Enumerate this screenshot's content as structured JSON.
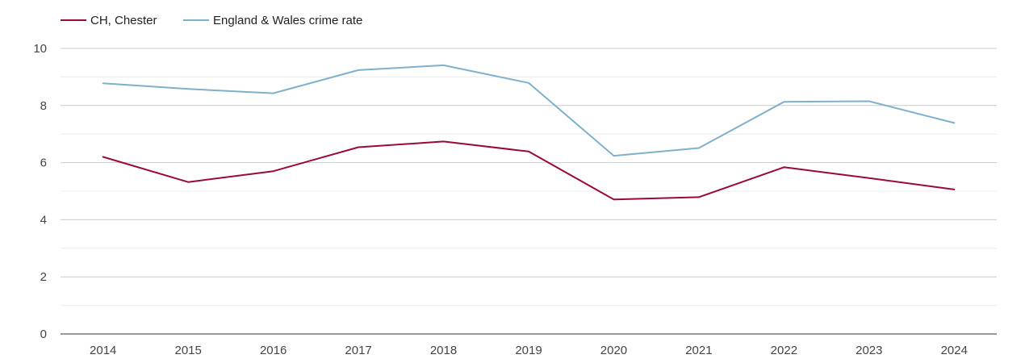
{
  "chart_data": {
    "type": "line",
    "title": "",
    "xlabel": "",
    "ylabel": "",
    "x": [
      "2014",
      "2015",
      "2016",
      "2017",
      "2018",
      "2019",
      "2020",
      "2021",
      "2022",
      "2023",
      "2024"
    ],
    "ylim": [
      0,
      10
    ],
    "yticks": [
      0,
      2,
      4,
      6,
      8,
      10
    ],
    "grid": true,
    "legend_position": "top-left",
    "series": [
      {
        "name": "CH, Chester",
        "color": "#9b0a36",
        "values": [
          6.2,
          5.32,
          5.7,
          6.54,
          6.74,
          6.39,
          4.71,
          4.79,
          5.84,
          5.46,
          5.06
        ]
      },
      {
        "name": "England & Wales crime rate",
        "color": "#7fb0cc",
        "values": [
          8.78,
          8.58,
          8.43,
          9.24,
          9.41,
          8.79,
          6.24,
          6.51,
          8.13,
          8.15,
          7.39
        ]
      }
    ]
  }
}
